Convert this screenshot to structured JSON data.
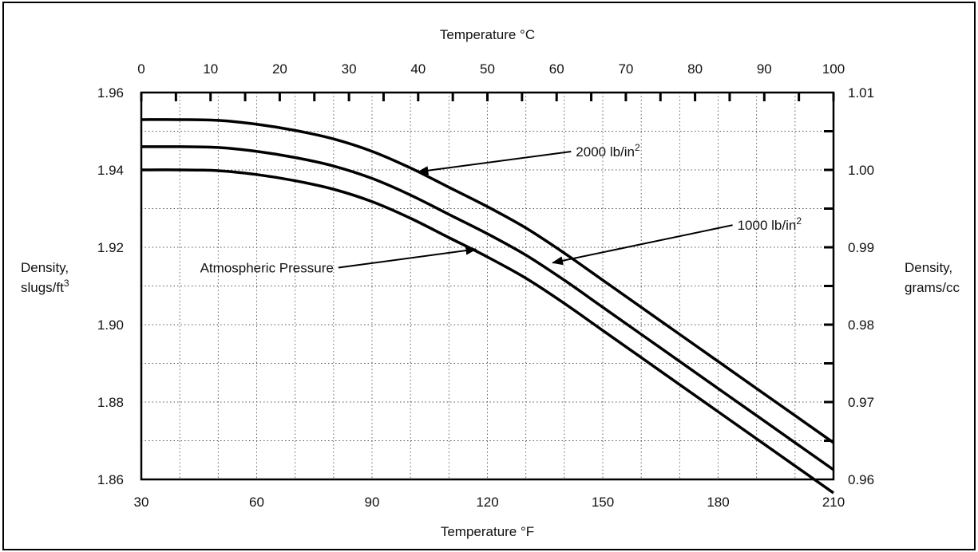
{
  "chart_data": {
    "type": "line",
    "x_bottom": {
      "label": "Temperature °F",
      "range": [
        30,
        210
      ],
      "ticks": [
        "30",
        "60",
        "90",
        "120",
        "150",
        "180",
        "210"
      ]
    },
    "x_top": {
      "label": "Temperature °C",
      "range": [
        0,
        100
      ],
      "ticks": [
        "0",
        "10",
        "20",
        "30",
        "40",
        "50",
        "60",
        "70",
        "80",
        "90",
        "100"
      ]
    },
    "y_left": {
      "label_line1": "Density,",
      "label_line2": "slugs/ft",
      "label_sup": "3",
      "range": [
        1.86,
        1.96
      ],
      "ticks": [
        "1.86",
        "1.88",
        "1.90",
        "1.92",
        "1.94",
        "1.96"
      ]
    },
    "y_right": {
      "label_line1": "Density,",
      "label_line2": "grams/cc",
      "range": [
        0.96,
        1.01
      ],
      "ticks": [
        "0.96",
        "0.97",
        "0.98",
        "0.99",
        "1.00",
        "1.01"
      ]
    },
    "grid": true,
    "series": [
      {
        "name": "2000 lb/in",
        "sup": "2",
        "x": [
          30,
          40,
          50,
          60,
          70,
          80,
          90,
          100,
          110,
          120,
          130,
          140,
          150,
          160,
          170,
          180,
          190,
          200,
          210
        ],
        "y": [
          1.953,
          1.953,
          1.9528,
          1.9518,
          1.9502,
          1.948,
          1.9448,
          1.9405,
          1.9355,
          1.9305,
          1.925,
          1.9185,
          1.9115,
          1.9045,
          1.8975,
          1.8905,
          1.8835,
          1.8765,
          1.8695
        ]
      },
      {
        "name": "1000 lb/in",
        "sup": "2",
        "x": [
          30,
          40,
          50,
          60,
          70,
          80,
          90,
          100,
          110,
          120,
          130,
          140,
          150,
          160,
          170,
          180,
          190,
          200,
          210
        ],
        "y": [
          1.946,
          1.946,
          1.9458,
          1.9448,
          1.9432,
          1.941,
          1.9378,
          1.9335,
          1.9285,
          1.9235,
          1.918,
          1.9115,
          1.9045,
          1.8975,
          1.8905,
          1.8835,
          1.8765,
          1.8695,
          1.8625
        ]
      },
      {
        "name": "Atmospheric Pressure",
        "sup": "",
        "x": [
          30,
          40,
          50,
          60,
          70,
          80,
          90,
          100,
          110,
          120,
          130,
          140,
          150,
          160,
          170,
          180,
          190,
          200,
          210
        ],
        "y": [
          1.94,
          1.94,
          1.9398,
          1.9388,
          1.9372,
          1.935,
          1.9318,
          1.9275,
          1.9225,
          1.9175,
          1.912,
          1.9055,
          1.8985,
          1.8915,
          1.8845,
          1.8775,
          1.8705,
          1.8635,
          1.8565
        ]
      }
    ],
    "annotations": [
      {
        "text": "2000 lb/in",
        "sup": "2",
        "point_x": 102,
        "point_y": 1.9395,
        "label_x": 143,
        "label_y": 1.9435
      },
      {
        "text": "1000 lb/in",
        "sup": "2",
        "point_x": 137,
        "point_y": 1.916,
        "label_x": 185,
        "label_y": 1.9245
      },
      {
        "text": "Atmospheric Pressure",
        "sup": "",
        "point_x": 117,
        "point_y": 1.9195,
        "label_x": 80,
        "label_y": 1.9135
      }
    ]
  }
}
